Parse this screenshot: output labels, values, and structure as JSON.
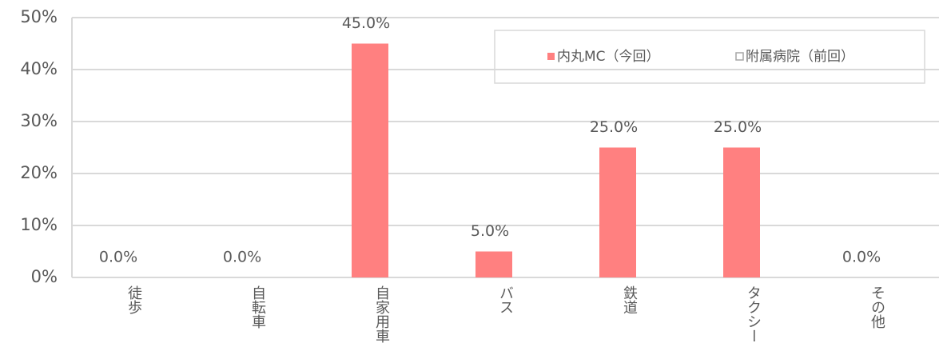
{
  "chart_data": {
    "type": "bar",
    "categories": [
      "徒歩",
      "自転車",
      "自家用車",
      "バス",
      "鉄道",
      "タクシー",
      "その他"
    ],
    "series": [
      {
        "name": "内丸MC（今回）",
        "color": "#ff8080",
        "values": [
          0,
          0,
          45,
          5,
          25,
          25,
          0
        ],
        "value_labels": [
          "0.0%",
          "0.0%",
          "45.0%",
          "5.0%",
          "25.0%",
          "25.0%",
          "0.0%"
        ]
      },
      {
        "name": "附属病院（前回）",
        "color": "#ffffff",
        "values": [
          null,
          null,
          null,
          null,
          null,
          null,
          null
        ]
      }
    ],
    "ylim": [
      0,
      50
    ],
    "yticks": [
      {
        "value": 0,
        "label": "0%"
      },
      {
        "value": 10,
        "label": "10%"
      },
      {
        "value": 20,
        "label": "20%"
      },
      {
        "value": 30,
        "label": "30%"
      },
      {
        "value": 40,
        "label": "40%"
      },
      {
        "value": 50,
        "label": "50%"
      }
    ],
    "grid": true,
    "legend": "top-right"
  }
}
